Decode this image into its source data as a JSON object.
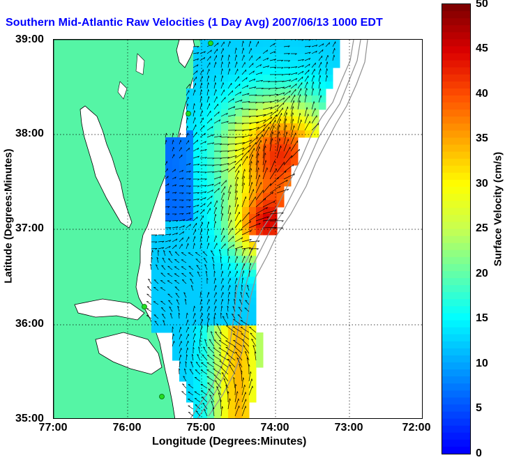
{
  "title": {
    "main": "Southern Mid-Atlantic Raw Velocities (1 Day Avg) 2007/06/13 1000",
    "suffix": " EDT"
  },
  "axes": {
    "xlabel": "Longitude (Degrees:Minutes)",
    "ylabel": "Latitude (Degrees:Minutes)",
    "xticks": [
      "77:00",
      "76:00",
      "75:00",
      "74:00",
      "73:00",
      "72:00"
    ],
    "yticks": [
      "39:00",
      "38:00",
      "37:00",
      "36:00",
      "35:00"
    ]
  },
  "colorbar": {
    "label": "Surface Velocity (cm/s)",
    "ticks": [
      "50",
      "45",
      "40",
      "35",
      "30",
      "25",
      "20",
      "15",
      "10",
      "5",
      "0"
    ],
    "min": 0,
    "max": 50,
    "colormap": [
      "#0000ff",
      "#00ffff",
      "#ffff00",
      "#ff0000",
      "#800000"
    ]
  },
  "colors": {
    "land": "#55f5a5",
    "coastline": "#000000",
    "bathymetry": "#909090",
    "radar_site": "#22dd22",
    "title": "#0000ff"
  },
  "map": {
    "lon_range": [
      -77,
      -72
    ],
    "lat_range": [
      35,
      39
    ],
    "grid": true
  }
}
